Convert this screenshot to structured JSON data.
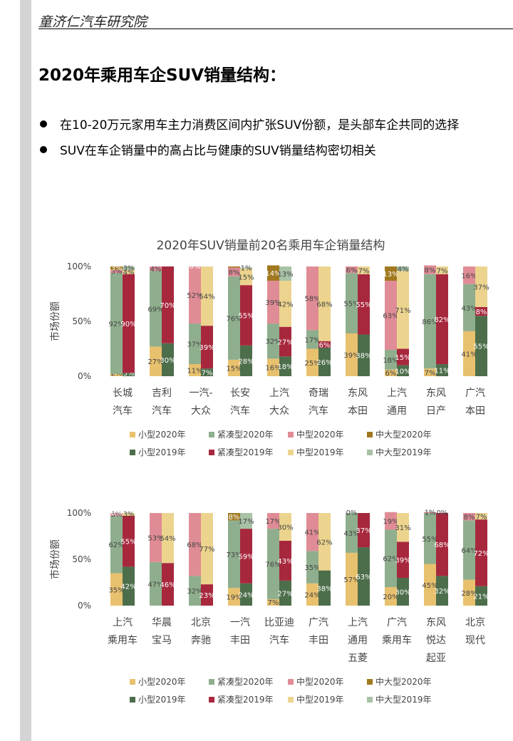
{
  "header": "童济仁汽车研究院",
  "title": "2020年乘用车企SUV销量结构：",
  "bullets": [
    "在10-20万元家用车主力消费区间内扩张SUV份额，是头部车企共同的选择",
    "SUV在车企销量中的高占比与健康的SUV销量结构密切相关"
  ],
  "chart_data": [
    {
      "type": "bar",
      "title": "2020年SUV销量前20名乘用车企销量结构",
      "ylabel": "市场份额",
      "yticks": [
        "0%",
        "50%",
        "100%"
      ],
      "ylim": [
        0,
        100
      ],
      "categories": [
        [
          "长城",
          "汽车"
        ],
        [
          "吉利",
          "汽车"
        ],
        [
          "一汽-",
          "大众"
        ],
        [
          "长安",
          "汽车"
        ],
        [
          "上汽",
          "大众"
        ],
        [
          "奇瑞",
          "汽车"
        ],
        [
          "东风",
          "本田"
        ],
        [
          "上汽",
          "通用"
        ],
        [
          "东风",
          "日产"
        ],
        [
          "广汽",
          "本田"
        ]
      ],
      "legend": [
        {
          "name": "小型2020年",
          "color": "#e8c16e"
        },
        {
          "name": "紧凑型2020年",
          "color": "#8fae8d"
        },
        {
          "name": "中型2020年",
          "color": "#e08c96"
        },
        {
          "name": "中大型2020年",
          "color": "#a0781e"
        },
        {
          "name": "小型2019年",
          "color": "#4d6e4b"
        },
        {
          "name": "紧凑型2019年",
          "color": "#a7283d"
        },
        {
          "name": "中型2019年",
          "color": "#ecd48e"
        },
        {
          "name": "中大型2019年",
          "color": "#a8c2a6"
        }
      ],
      "series_2020": [
        [
          {
            "v": 2,
            "c": "#e8c16e",
            "l": "2%"
          },
          {
            "v": 92,
            "c": "#8fae8d",
            "l": "92%"
          },
          {
            "v": 3,
            "c": "#e08c96",
            "l": "3%"
          },
          {
            "v": 3,
            "c": "#a0781e",
            "l": "3%"
          }
        ],
        [
          {
            "v": 27,
            "c": "#e8c16e",
            "l": "27%"
          },
          {
            "v": 69,
            "c": "#8fae8d",
            "l": "69%"
          },
          {
            "v": 4,
            "c": "#e08c96",
            "l": "4%"
          }
        ],
        [
          {
            "v": 11,
            "c": "#e8c16e",
            "l": "11%"
          },
          {
            "v": 37,
            "c": "#8fae8d",
            "l": "37%"
          },
          {
            "v": 52,
            "c": "#e08c96",
            "l": "52%"
          },
          {
            "v": 0,
            "c": "#a0781e",
            "l": "0%"
          }
        ],
        [
          {
            "v": 15,
            "c": "#e8c16e",
            "l": "15%"
          },
          {
            "v": 76,
            "c": "#8fae8d",
            "l": "76%"
          },
          {
            "v": 8,
            "c": "#e08c96",
            "l": "8%"
          },
          {
            "v": 1,
            "c": "#a0781e",
            "l": ""
          }
        ],
        [
          {
            "v": 16,
            "c": "#e8c16e",
            "l": "16%"
          },
          {
            "v": 32,
            "c": "#8fae8d",
            "l": "32%"
          },
          {
            "v": 39,
            "c": "#e08c96",
            "l": "39%"
          },
          {
            "v": 14,
            "c": "#a0781e",
            "l": "14%"
          }
        ],
        [
          {
            "v": 25,
            "c": "#e8c16e",
            "l": "25%"
          },
          {
            "v": 17,
            "c": "#8fae8d",
            "l": "17%"
          },
          {
            "v": 58,
            "c": "#e08c96",
            "l": "58%"
          }
        ],
        [
          {
            "v": 39,
            "c": "#e8c16e",
            "l": "39%"
          },
          {
            "v": 55,
            "c": "#8fae8d",
            "l": "55%"
          },
          {
            "v": 6,
            "c": "#e08c96",
            "l": "6%"
          }
        ],
        [
          {
            "v": 6,
            "c": "#e8c16e",
            "l": "6%"
          },
          {
            "v": 18,
            "c": "#8fae8d",
            "l": "18%"
          },
          {
            "v": 63,
            "c": "#e08c96",
            "l": "63%"
          },
          {
            "v": 13,
            "c": "#a0781e",
            "l": "13%"
          }
        ],
        [
          {
            "v": 7,
            "c": "#e8c16e",
            "l": "7%"
          },
          {
            "v": 86,
            "c": "#8fae8d",
            "l": "86%"
          },
          {
            "v": 8,
            "c": "#e08c96",
            "l": "8%"
          }
        ],
        [
          {
            "v": 41,
            "c": "#e8c16e",
            "l": "41%"
          },
          {
            "v": 43,
            "c": "#8fae8d",
            "l": "43%"
          },
          {
            "v": 16,
            "c": "#e08c96",
            "l": "16%"
          }
        ]
      ],
      "series_2019": [
        [
          {
            "v": 3,
            "c": "#4d6e4b",
            "l": "3%"
          },
          {
            "v": 90,
            "c": "#a7283d",
            "l": "90%"
          },
          {
            "v": 4,
            "c": "#ecd48e",
            "l": "4%"
          },
          {
            "v": 3,
            "c": "#a8c2a6",
            "l": "3%"
          }
        ],
        [
          {
            "v": 30,
            "c": "#4d6e4b",
            "l": "30%"
          },
          {
            "v": 70,
            "c": "#a7283d",
            "l": "70%"
          }
        ],
        [
          {
            "v": 7,
            "c": "#4d6e4b",
            "l": "7%"
          },
          {
            "v": 39,
            "c": "#a7283d",
            "l": "39%"
          },
          {
            "v": 54,
            "c": "#ecd48e",
            "l": "54%"
          }
        ],
        [
          {
            "v": 28,
            "c": "#4d6e4b",
            "l": "28%"
          },
          {
            "v": 55,
            "c": "#a7283d",
            "l": "55%"
          },
          {
            "v": 15,
            "c": "#ecd48e",
            "l": "15%"
          },
          {
            "v": 1,
            "c": "#a8c2a6",
            "l": "1%"
          }
        ],
        [
          {
            "v": 18,
            "c": "#4d6e4b",
            "l": "18%"
          },
          {
            "v": 27,
            "c": "#a7283d",
            "l": "27%"
          },
          {
            "v": 42,
            "c": "#ecd48e",
            "l": "42%"
          },
          {
            "v": 13,
            "c": "#a8c2a6",
            "l": "13%"
          }
        ],
        [
          {
            "v": 26,
            "c": "#4d6e4b",
            "l": "26%"
          },
          {
            "v": 6,
            "c": "#a7283d",
            "l": "6%"
          },
          {
            "v": 68,
            "c": "#ecd48e",
            "l": "68%"
          }
        ],
        [
          {
            "v": 38,
            "c": "#4d6e4b",
            "l": "38%"
          },
          {
            "v": 55,
            "c": "#a7283d",
            "l": "55%"
          },
          {
            "v": 7,
            "c": "#ecd48e",
            "l": "7%"
          }
        ],
        [
          {
            "v": 10,
            "c": "#4d6e4b",
            "l": "10%"
          },
          {
            "v": 15,
            "c": "#a7283d",
            "l": "15%"
          },
          {
            "v": 71,
            "c": "#ecd48e",
            "l": "71%"
          },
          {
            "v": 4,
            "c": "#a8c2a6",
            "l": "4%"
          }
        ],
        [
          {
            "v": 11,
            "c": "#4d6e4b",
            "l": "11%"
          },
          {
            "v": 82,
            "c": "#a7283d",
            "l": "82%"
          },
          {
            "v": 7,
            "c": "#ecd48e",
            "l": "7%"
          }
        ],
        [
          {
            "v": 55,
            "c": "#4d6e4b",
            "l": "55%"
          },
          {
            "v": 8,
            "c": "#a7283d",
            "l": "8%"
          },
          {
            "v": 37,
            "c": "#ecd48e",
            "l": "37%"
          }
        ]
      ]
    },
    {
      "type": "bar",
      "title": "",
      "ylabel": "市场份额",
      "yticks": [
        "0%",
        "50%",
        "100%"
      ],
      "ylim": [
        0,
        100
      ],
      "categories": [
        [
          "上汽",
          "乘用车"
        ],
        [
          "华晨",
          "宝马"
        ],
        [
          "北京",
          "奔驰"
        ],
        [
          "一汽",
          "丰田"
        ],
        [
          "比亚迪",
          "汽车"
        ],
        [
          "广汽",
          "丰田"
        ],
        [
          "上汽",
          "通用",
          "五菱"
        ],
        [
          "广汽",
          "乘用车"
        ],
        [
          "东风",
          "悦达",
          "起亚"
        ],
        [
          "北京",
          "现代"
        ]
      ],
      "legend": [
        {
          "name": "小型2020年",
          "color": "#e8c16e"
        },
        {
          "name": "紧凑型2020年",
          "color": "#8fae8d"
        },
        {
          "name": "中型2020年",
          "color": "#e08c96"
        },
        {
          "name": "中大型2020年",
          "color": "#a0781e"
        },
        {
          "name": "小型2019年",
          "color": "#4d6e4b"
        },
        {
          "name": "紧凑型2019年",
          "color": "#a7283d"
        },
        {
          "name": "中型2019年",
          "color": "#ecd48e"
        },
        {
          "name": "中大型2019年",
          "color": "#a8c2a6"
        }
      ],
      "series_2020": [
        [
          {
            "v": 35,
            "c": "#e8c16e",
            "l": "35%"
          },
          {
            "v": 62,
            "c": "#8fae8d",
            "l": "62%"
          },
          {
            "v": 3,
            "c": "#e08c96",
            "l": "3%"
          },
          {
            "v": 0,
            "c": "#a0781e",
            "l": "0%"
          }
        ],
        [
          {
            "v": 47,
            "c": "#8fae8d",
            "l": "47%"
          },
          {
            "v": 53,
            "c": "#e08c96",
            "l": "53%"
          }
        ],
        [
          {
            "v": 32,
            "c": "#8fae8d",
            "l": "32%"
          },
          {
            "v": 68,
            "c": "#e08c96",
            "l": "68%"
          }
        ],
        [
          {
            "v": 19,
            "c": "#e8c16e",
            "l": "19%"
          },
          {
            "v": 73,
            "c": "#8fae8d",
            "l": "73%"
          },
          {
            "v": 8,
            "c": "#a0781e",
            "l": "8%"
          }
        ],
        [
          {
            "v": 7,
            "c": "#e8c16e",
            "l": "7%"
          },
          {
            "v": 76,
            "c": "#8fae8d",
            "l": "76%"
          },
          {
            "v": 17,
            "c": "#e08c96",
            "l": "17%"
          }
        ],
        [
          {
            "v": 24,
            "c": "#e8c16e",
            "l": "24%"
          },
          {
            "v": 35,
            "c": "#8fae8d",
            "l": "35%"
          },
          {
            "v": 41,
            "c": "#e08c96",
            "l": "41%"
          }
        ],
        [
          {
            "v": 57,
            "c": "#e8c16e",
            "l": "57%"
          },
          {
            "v": 43,
            "c": "#8fae8d",
            "l": "43%"
          },
          {
            "v": 0,
            "c": "#e08c96",
            "l": "0%"
          }
        ],
        [
          {
            "v": 20,
            "c": "#e8c16e",
            "l": "20%"
          },
          {
            "v": 62,
            "c": "#8fae8d",
            "l": "62%"
          },
          {
            "v": 19,
            "c": "#e08c96",
            "l": "19%"
          }
        ],
        [
          {
            "v": 45,
            "c": "#e8c16e",
            "l": "45%"
          },
          {
            "v": 55,
            "c": "#8fae8d",
            "l": "55%"
          },
          {
            "v": 1,
            "c": "#e08c96",
            "l": "1%"
          }
        ],
        [
          {
            "v": 28,
            "c": "#e8c16e",
            "l": "28%"
          },
          {
            "v": 64,
            "c": "#8fae8d",
            "l": "64%"
          },
          {
            "v": 8,
            "c": "#e08c96",
            "l": "8%"
          }
        ]
      ],
      "series_2019": [
        [
          {
            "v": 42,
            "c": "#4d6e4b",
            "l": "42%"
          },
          {
            "v": 55,
            "c": "#a7283d",
            "l": "55%"
          },
          {
            "v": 3,
            "c": "#ecd48e",
            "l": "3%"
          }
        ],
        [
          {
            "v": 46,
            "c": "#a7283d",
            "l": "46%"
          },
          {
            "v": 54,
            "c": "#ecd48e",
            "l": "54%"
          }
        ],
        [
          {
            "v": 23,
            "c": "#a7283d",
            "l": "23%"
          },
          {
            "v": 77,
            "c": "#ecd48e",
            "l": "77%"
          }
        ],
        [
          {
            "v": 24,
            "c": "#4d6e4b",
            "l": "24%"
          },
          {
            "v": 59,
            "c": "#a7283d",
            "l": "59%"
          },
          {
            "v": 17,
            "c": "#a8c2a6",
            "l": "17%"
          }
        ],
        [
          {
            "v": 27,
            "c": "#4d6e4b",
            "l": "27%"
          },
          {
            "v": 43,
            "c": "#a7283d",
            "l": "43%"
          },
          {
            "v": 30,
            "c": "#ecd48e",
            "l": "30%"
          }
        ],
        [
          {
            "v": 38,
            "c": "#4d6e4b",
            "l": "38%"
          },
          {
            "v": 62,
            "c": "#ecd48e",
            "l": "62%"
          }
        ],
        [
          {
            "v": 63,
            "c": "#4d6e4b",
            "l": "63%"
          },
          {
            "v": 37,
            "c": "#a7283d",
            "l": "37%"
          }
        ],
        [
          {
            "v": 30,
            "c": "#4d6e4b",
            "l": "30%"
          },
          {
            "v": 39,
            "c": "#a7283d",
            "l": "39%"
          },
          {
            "v": 31,
            "c": "#ecd48e",
            "l": "31%"
          }
        ],
        [
          {
            "v": 32,
            "c": "#4d6e4b",
            "l": "32%"
          },
          {
            "v": 68,
            "c": "#a7283d",
            "l": "68%"
          },
          {
            "v": 0,
            "c": "#ecd48e",
            "l": "0%"
          }
        ],
        [
          {
            "v": 21,
            "c": "#4d6e4b",
            "l": "21%"
          },
          {
            "v": 72,
            "c": "#a7283d",
            "l": "72%"
          },
          {
            "v": 7,
            "c": "#ecd48e",
            "l": "7%"
          }
        ]
      ]
    }
  ]
}
